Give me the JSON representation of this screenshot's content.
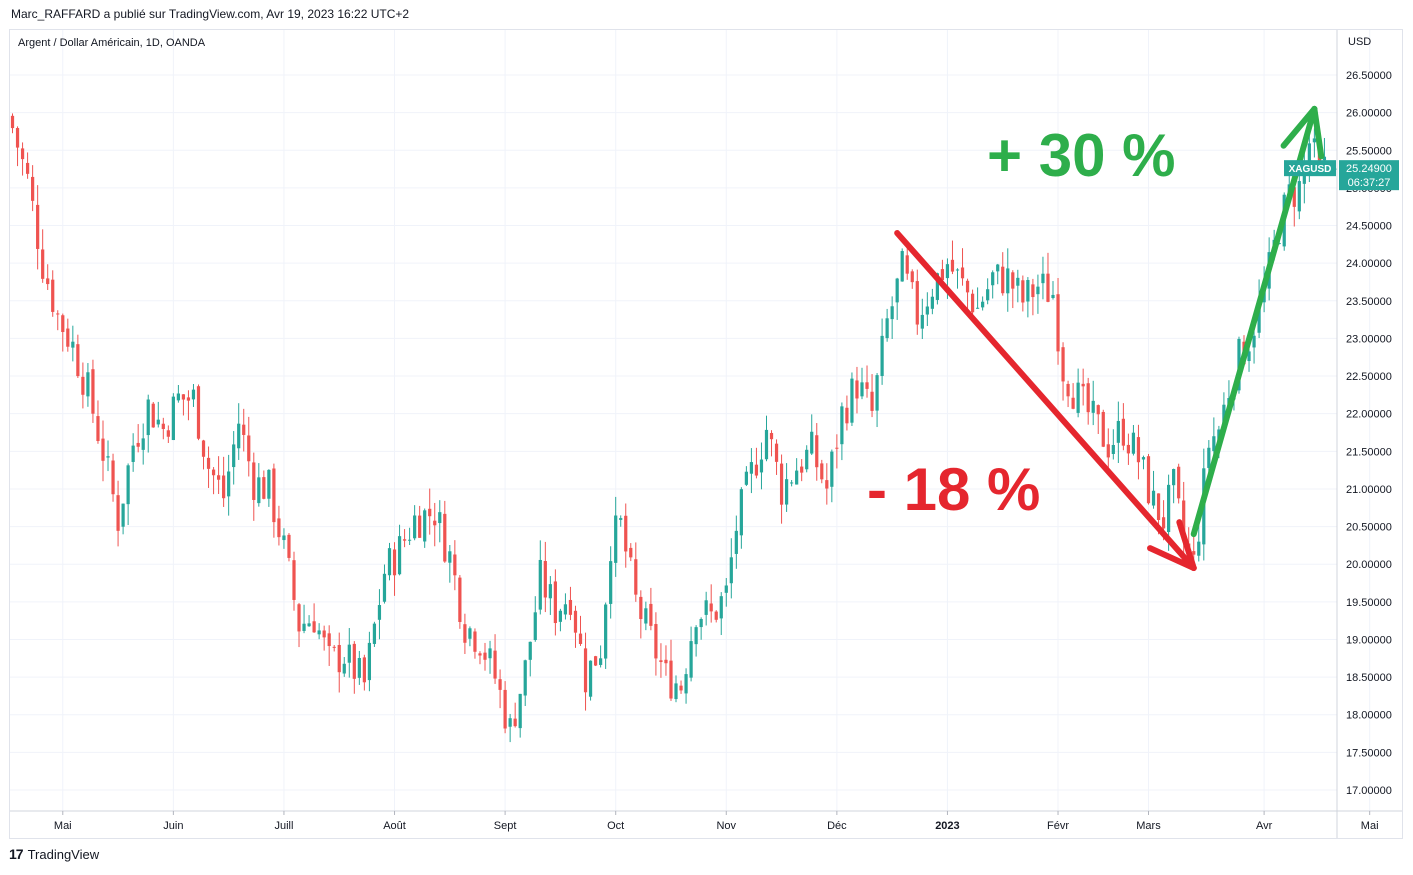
{
  "header": {
    "publisher_line": "Marc_RAFFARD a publié sur TradingView.com, Avr 19, 2023 16:22 UTC+2"
  },
  "footer": {
    "logo_glyph": "17",
    "brand": "TradingView"
  },
  "colors": {
    "up": "#26a69a",
    "down": "#ef5350",
    "grid": "#f0f3fa",
    "axis_text": "#131722",
    "annotation_down": "#e5262e",
    "annotation_up": "#2eae4b",
    "price_tag": "#26a69a"
  },
  "chart_data": {
    "type": "candlestick",
    "title": "Argent / Dollar Américain, 1D, OANDA",
    "currency": "USD",
    "ylim": [
      16.8,
      27.0
    ],
    "y_ticks": [
      "17.00000",
      "17.50000",
      "18.00000",
      "18.50000",
      "19.00000",
      "19.50000",
      "20.00000",
      "20.50000",
      "21.00000",
      "21.50000",
      "22.00000",
      "22.50000",
      "23.00000",
      "23.50000",
      "24.00000",
      "24.50000",
      "25.00000",
      "25.50000",
      "26.00000",
      "26.50000"
    ],
    "x_ticks": [
      "Mai",
      "Juin",
      "Juill",
      "Août",
      "Sept",
      "Oct",
      "Nov",
      "Déc",
      "2023",
      "Févr",
      "Mars",
      "Avr",
      "Mai"
    ],
    "x_tick_positions": [
      10,
      32,
      54,
      76,
      98,
      120,
      142,
      164,
      186,
      208,
      226,
      249,
      270
    ],
    "n_bars": 262,
    "close_path": [
      [
        0,
        25.8
      ],
      [
        3,
        25.1
      ],
      [
        6,
        24.0
      ],
      [
        9,
        23.3
      ],
      [
        12,
        22.9
      ],
      [
        15,
        22.3
      ],
      [
        18,
        21.5
      ],
      [
        21,
        20.6
      ],
      [
        24,
        21.6
      ],
      [
        27,
        22.1
      ],
      [
        30,
        21.8
      ],
      [
        33,
        22.2
      ],
      [
        36,
        22.2
      ],
      [
        39,
        21.3
      ],
      [
        42,
        20.9
      ],
      [
        45,
        21.9
      ],
      [
        48,
        21.1
      ],
      [
        51,
        21.0
      ],
      [
        54,
        20.2
      ],
      [
        57,
        19.2
      ],
      [
        60,
        19.3
      ],
      [
        63,
        18.7
      ],
      [
        66,
        18.8
      ],
      [
        70,
        18.4
      ],
      [
        74,
        19.9
      ],
      [
        77,
        20.2
      ],
      [
        80,
        20.6
      ],
      [
        84,
        20.7
      ],
      [
        87,
        20.1
      ],
      [
        90,
        19.2
      ],
      [
        93,
        19.0
      ],
      [
        96,
        18.5
      ],
      [
        99,
        17.8
      ],
      [
        102,
        18.6
      ],
      [
        105,
        19.8
      ],
      [
        108,
        19.4
      ],
      [
        111,
        19.6
      ],
      [
        114,
        18.5
      ],
      [
        117,
        18.9
      ],
      [
        119,
        20.3
      ],
      [
        121,
        20.5
      ],
      [
        124,
        19.5
      ],
      [
        127,
        19.0
      ],
      [
        130,
        18.5
      ],
      [
        133,
        18.4
      ],
      [
        136,
        19.4
      ],
      [
        139,
        19.3
      ],
      [
        142,
        19.6
      ],
      [
        144,
        20.5
      ],
      [
        147,
        21.2
      ],
      [
        150,
        21.8
      ],
      [
        153,
        21.0
      ],
      [
        156,
        21.3
      ],
      [
        159,
        21.5
      ],
      [
        162,
        21.0
      ],
      [
        165,
        22.0
      ],
      [
        168,
        22.4
      ],
      [
        171,
        22.0
      ],
      [
        174,
        23.2
      ],
      [
        177,
        23.9
      ],
      [
        180,
        23.3
      ],
      [
        183,
        23.7
      ],
      [
        186,
        24.0
      ],
      [
        189,
        23.7
      ],
      [
        192,
        23.4
      ],
      [
        195,
        23.8
      ],
      [
        198,
        23.8
      ],
      [
        201,
        23.5
      ],
      [
        204,
        23.7
      ],
      [
        207,
        23.6
      ],
      [
        209,
        22.6
      ],
      [
        212,
        22.2
      ],
      [
        215,
        21.9
      ],
      [
        218,
        21.6
      ],
      [
        221,
        21.8
      ],
      [
        224,
        21.4
      ],
      [
        227,
        20.8
      ],
      [
        229,
        20.6
      ],
      [
        231,
        21.0
      ],
      [
        233,
        20.3
      ],
      [
        235,
        20.0
      ],
      [
        236,
        20.5
      ],
      [
        238,
        21.6
      ],
      [
        240,
        21.8
      ],
      [
        243,
        22.6
      ],
      [
        246,
        23.0
      ],
      [
        249,
        23.6
      ],
      [
        252,
        24.5
      ],
      [
        254,
        24.9
      ],
      [
        256,
        25.0
      ],
      [
        258,
        25.6
      ],
      [
        260,
        25.2
      ],
      [
        261,
        25.25
      ]
    ],
    "last_price": {
      "symbol": "XAGUSD",
      "value": "25.24900",
      "countdown": "06:37:27"
    },
    "annotations": [
      {
        "text": "- 18 %",
        "kind": "down"
      },
      {
        "text": "+ 30 %",
        "kind": "up"
      }
    ],
    "arrows": [
      {
        "kind": "down",
        "from_bar": 176,
        "from_price": 24.4,
        "to_bar": 235,
        "to_price": 19.95
      },
      {
        "kind": "up",
        "from_bar": 235,
        "from_price": 20.4,
        "to_bar": 259,
        "to_price": 26.05
      }
    ],
    "grid": true,
    "legend": "top-left"
  }
}
